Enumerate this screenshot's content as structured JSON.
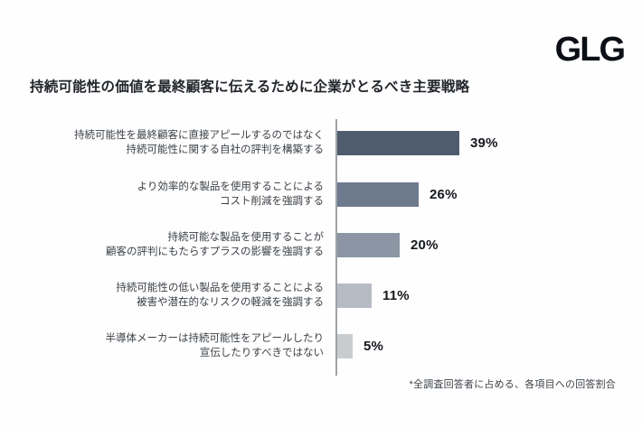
{
  "brand": {
    "logo_text": "GLG"
  },
  "title": "持続可能性の価値を最終顧客に伝えるために企業がとるべき主要戦略",
  "footnote": "*全調査回答者に占める、各項目への回答割合",
  "chart_data": {
    "type": "bar",
    "orientation": "horizontal",
    "title": "持続可能性の価値を最終顧客に伝えるために企業がとるべき主要戦略",
    "categories": [
      "持続可能性を最終顧客に直接アピールするのではなく 持続可能性に関する自社の評判を構築する",
      "より効率的な製品を使用することによる コスト削減を強調する",
      "持続可能な製品を使用することが 顧客の評判にもたらすプラスの影響を強調する",
      "持続可能性の低い製品を使用することによる 被害や潜在的なリスクの軽減を強調する",
      "半導体メーカーは持続可能性をアピールしたり 宣伝したりすべきではない"
    ],
    "values": [
      39,
      26,
      20,
      11,
      5
    ],
    "xlabel": "",
    "ylabel": "",
    "xlim": [
      0,
      45
    ],
    "grid": false,
    "legend": false,
    "footnote": "*全調査回答者に占める、各項目への回答割合",
    "rows": [
      {
        "label_lines": [
          "持続可能性を最終顧客に直接アピールするのではなく",
          "持続可能性に関する自社の評判を構築する"
        ],
        "value": 39,
        "value_label": "39%",
        "color": "#4f5c6e"
      },
      {
        "label_lines": [
          "より効率的な製品を使用することによる",
          "コスト削減を強調する"
        ],
        "value": 26,
        "value_label": "26%",
        "color": "#6e7a8e"
      },
      {
        "label_lines": [
          "持続可能な製品を使用することが",
          "顧客の評判にもたらすプラスの影響を強調する"
        ],
        "value": 20,
        "value_label": "20%",
        "color": "#8b95a3"
      },
      {
        "label_lines": [
          "持続可能性の低い製品を使用することによる",
          "被害や潜在的なリスクの軽減を強調する"
        ],
        "value": 11,
        "value_label": "11%",
        "color": "#b7bbc3"
      },
      {
        "label_lines": [
          "半導体メーカーは持続可能性をアピールしたり",
          "宣伝したりすべきではない"
        ],
        "value": 5,
        "value_label": "5%",
        "color": "#c9cccf"
      }
    ]
  }
}
